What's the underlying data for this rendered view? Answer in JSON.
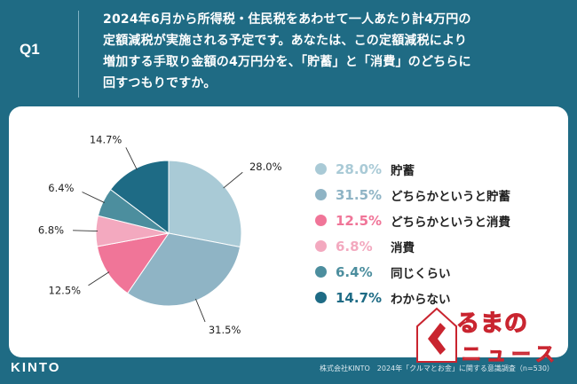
{
  "header": {
    "q_label": "Q1",
    "question_lines": [
      "2024年6月から所得税・住民税をあわせて一人あたり計4万円の",
      "定額減税が実施される予定です。あなたは、この定額減税により",
      "増加する手取り金額の4万円分を、「貯蓄」と「消費」のどちらに",
      "回すつもりですか。"
    ]
  },
  "chart_data": {
    "type": "pie",
    "start": "12 o'clock, clockwise",
    "slices": [
      {
        "label": "貯蓄",
        "value": 28.0,
        "display": "28.0%",
        "color": "#a9cad6"
      },
      {
        "label": "どちらかというと貯蓄",
        "value": 31.5,
        "display": "31.5%",
        "color": "#8fb4c5"
      },
      {
        "label": "どちらかというと消費",
        "value": 12.5,
        "display": "12.5%",
        "color": "#f07598"
      },
      {
        "label": "消費",
        "value": 6.8,
        "display": "6.8%",
        "color": "#f3a9bf"
      },
      {
        "label": "同じくらい",
        "value": 6.4,
        "display": "6.4%",
        "color": "#4c8e9e"
      },
      {
        "label": "わからない",
        "value": 14.7,
        "display": "14.7%",
        "color": "#1e6b85"
      }
    ],
    "legend_placement": "right"
  },
  "footer": {
    "logo": "KINTO",
    "source": "株式会社KINTO　2024年「クルマとお金」に関する意識調査（n=530）"
  },
  "watermark": {
    "text": "るまの",
    "sub": "ニュース",
    "accent": "#c9242f"
  }
}
